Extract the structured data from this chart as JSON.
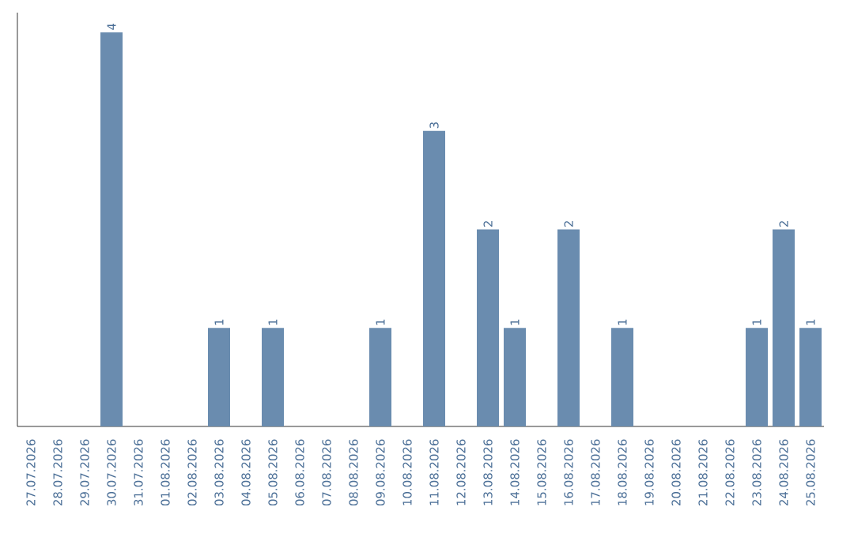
{
  "chart_data": {
    "type": "bar",
    "categories": [
      "27.07.2026",
      "28.07.2026",
      "29.07.2026",
      "30.07.2026",
      "31.07.2026",
      "01.08.2026",
      "02.08.2026",
      "03.08.2026",
      "04.08.2026",
      "05.08.2026",
      "06.08.2026",
      "07.08.2026",
      "08.08.2026",
      "09.08.2026",
      "10.08.2026",
      "11.08.2026",
      "12.08.2026",
      "13.08.2026",
      "14.08.2026",
      "15.08.2026",
      "16.08.2026",
      "17.08.2026",
      "18.08.2026",
      "19.08.2026",
      "20.08.2026",
      "21.08.2026",
      "22.08.2026",
      "23.08.2026",
      "24.08.2026",
      "25.08.2026"
    ],
    "values": [
      0,
      0,
      0,
      4,
      0,
      0,
      0,
      1,
      0,
      1,
      0,
      0,
      0,
      1,
      0,
      3,
      0,
      2,
      1,
      0,
      2,
      0,
      1,
      0,
      0,
      0,
      0,
      1,
      2,
      1
    ],
    "value_labels": [
      null,
      null,
      null,
      "4",
      null,
      null,
      null,
      "1",
      null,
      "1",
      null,
      null,
      null,
      "1",
      null,
      "3",
      null,
      "2",
      "1",
      null,
      "2",
      null,
      "1",
      null,
      null,
      null,
      null,
      "1",
      "2",
      "1"
    ],
    "color": "#6a8caf",
    "ylim": [
      0,
      4.2
    ],
    "tick_labels": "x"
  }
}
